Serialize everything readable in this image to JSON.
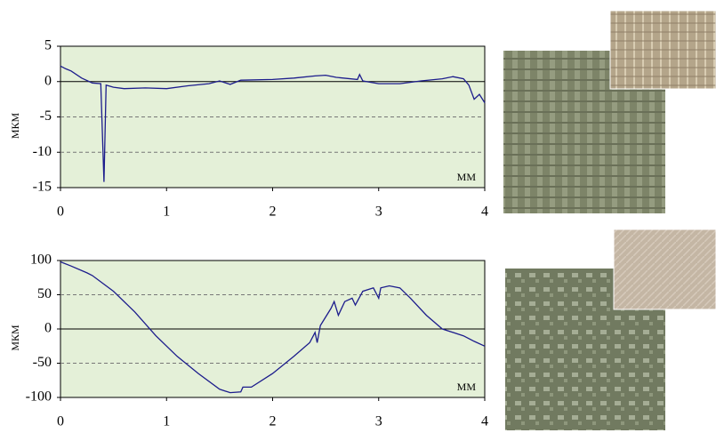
{
  "chart_data": [
    {
      "type": "line",
      "y_label": "МКМ",
      "x_label": "ММ",
      "background": "#e4f0d8",
      "series": [
        {
          "color": "#1c1c8c",
          "x": [
            0,
            0.05,
            0.1,
            0.2,
            0.3,
            0.38,
            0.41,
            0.43,
            0.5,
            0.6,
            0.8,
            1.0,
            1.2,
            1.4,
            1.5,
            1.6,
            1.7,
            2.0,
            2.2,
            2.4,
            2.5,
            2.6,
            2.8,
            2.82,
            2.85,
            3.0,
            3.2,
            3.4,
            3.6,
            3.7,
            3.8,
            3.85,
            3.9,
            3.95,
            4.0
          ],
          "values": [
            2.2,
            1.8,
            1.5,
            0.5,
            -0.2,
            -0.3,
            -14.2,
            -0.5,
            -0.8,
            -1.0,
            -0.9,
            -1.0,
            -0.6,
            -0.3,
            0.1,
            -0.4,
            0.2,
            0.3,
            0.5,
            0.8,
            0.9,
            0.6,
            0.3,
            1.0,
            0.1,
            -0.3,
            -0.3,
            0.1,
            0.4,
            0.7,
            0.4,
            -0.5,
            -2.5,
            -1.8,
            -3.0
          ]
        }
      ],
      "xlim": [
        0,
        4
      ],
      "xticks": [
        0,
        1,
        2,
        3,
        4
      ],
      "ylim": [
        -15,
        5
      ],
      "yticks": [
        -15,
        -10,
        -5,
        0,
        5
      ],
      "grid": true
    },
    {
      "type": "line",
      "y_label": "МКМ",
      "x_label": "ММ",
      "background": "#e4f0d8",
      "series": [
        {
          "color": "#1c1c8c",
          "x": [
            0,
            0.1,
            0.25,
            0.3,
            0.5,
            0.7,
            0.9,
            1.1,
            1.3,
            1.5,
            1.6,
            1.7,
            1.72,
            1.8,
            2.0,
            2.2,
            2.35,
            2.4,
            2.42,
            2.45,
            2.55,
            2.58,
            2.62,
            2.68,
            2.75,
            2.78,
            2.85,
            2.95,
            3.0,
            3.02,
            3.1,
            3.2,
            3.3,
            3.45,
            3.6,
            3.8,
            3.9,
            4.0
          ],
          "values": [
            98,
            92,
            82,
            78,
            55,
            25,
            -10,
            -40,
            -65,
            -88,
            -93,
            -92,
            -85,
            -85,
            -65,
            -40,
            -20,
            -5,
            -20,
            5,
            30,
            40,
            20,
            40,
            45,
            35,
            55,
            60,
            45,
            60,
            63,
            60,
            45,
            20,
            0,
            -10,
            -18,
            -25
          ]
        }
      ],
      "xlim": [
        0,
        4
      ],
      "xticks": [
        0,
        1,
        2,
        3,
        4
      ],
      "ylim": [
        -100,
        100
      ],
      "yticks": [
        -100,
        -50,
        0,
        50,
        100
      ],
      "grid": true
    }
  ]
}
